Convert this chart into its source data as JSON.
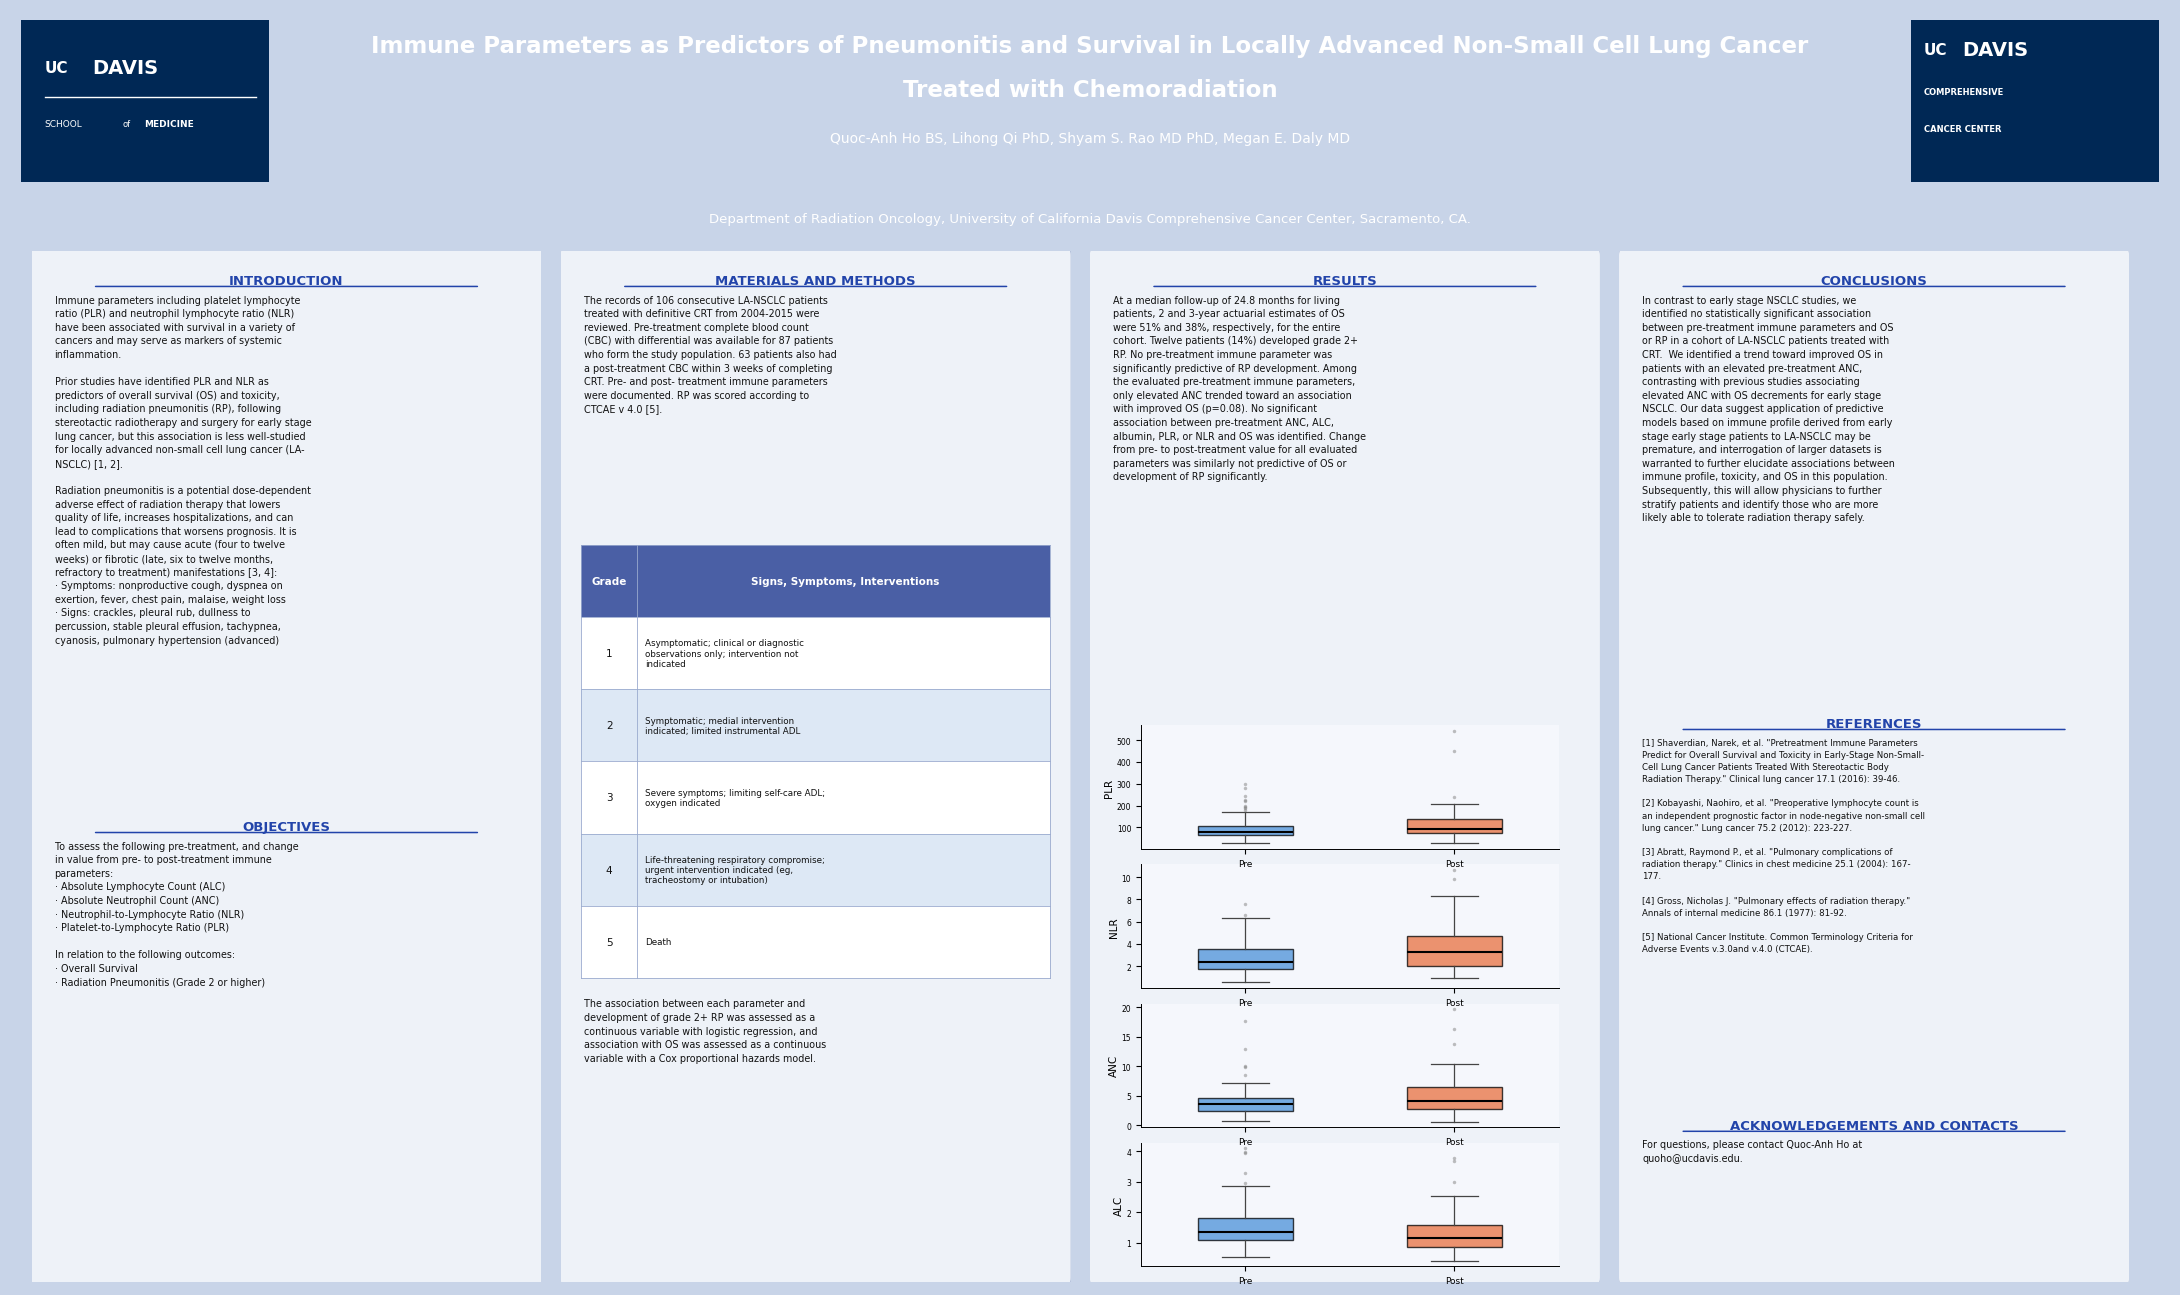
{
  "title_line1": "Immune Parameters as Predictors of Pneumonitis and Survival in Locally Advanced Non-Small Cell Lung Cancer",
  "title_line2": "Treated with Chemoradiation",
  "authors": "Quoc-Anh Ho BS, Lihong Qi PhD, Shyam S. Rao MD PhD, Megan E. Daly MD",
  "department": "Department of Radiation Oncology, University of California Davis Comprehensive Cancer Center, Sacramento, CA.",
  "header_bg": "#4a5fa5",
  "body_bg": "#c8d4e8",
  "panel_bg": "#eef2f8",
  "header_text_color": "#ffffff",
  "section_title_color": "#2244aa",
  "body_text_color": "#111111",
  "ucdavis_dark": "#002855",
  "table_header_bg": "#4a5fa5",
  "table_row1_bg": "#ffffff",
  "table_row2_bg": "#dde8f5",
  "intro_title": "INTRODUCTION",
  "intro_text": "Immune parameters including platelet lymphocyte\nratio (PLR) and neutrophil lymphocyte ratio (NLR)\nhave been associated with survival in a variety of\ncancers and may serve as markers of systemic\ninflammation.\n\nPrior studies have identified PLR and NLR as\npredictors of overall survival (OS) and toxicity,\nincluding radiation pneumonitis (RP), following\nstereotactic radiotherapy and surgery for early stage\nlung cancer, but this association is less well-studied\nfor locally advanced non-small cell lung cancer (LA-\nNSCLC) [1, 2].\n\nRadiation pneumonitis is a potential dose-dependent\nadverse effect of radiation therapy that lowers\nquality of life, increases hospitalizations, and can\nlead to complications that worsens prognosis. It is\noften mild, but may cause acute (four to twelve\nweeks) or fibrotic (late, six to twelve months,\nrefractory to treatment) manifestations [3, 4]:\n· Symptoms: nonproductive cough, dyspnea on\nexertion, fever, chest pain, malaise, weight loss\n· Signs: crackles, pleural rub, dullness to\npercussion, stable pleural effusion, tachypnea,\ncyanosis, pulmonary hypertension (advanced)",
  "objectives_title": "OBJECTIVES",
  "objectives_text": "To assess the following pre-treatment, and change\nin value from pre- to post-treatment immune\nparameters:\n· Absolute Lymphocyte Count (ALC)\n· Absolute Neutrophil Count (ANC)\n· Neutrophil-to-Lymphocyte Ratio (NLR)\n· Platelet-to-Lymphocyte Ratio (PLR)\n\nIn relation to the following outcomes:\n· Overall Survival\n· Radiation Pneumonitis (Grade 2 or higher)",
  "methods_title": "MATERIALS AND METHODS",
  "methods_text": "The records of 106 consecutive LA-NSCLC patients\ntreated with definitive CRT from 2004-2015 were\nreviewed. Pre-treatment complete blood count\n(CBC) with differential was available for 87 patients\nwho form the study population. 63 patients also had\na post-treatment CBC within 3 weeks of completing\nCRT. Pre- and post- treatment immune parameters\nwere documented. RP was scored according to\nCTCAE v 4.0 [5].",
  "methods_footer": "The association between each parameter and\ndevelopment of grade 2+ RP was assessed as a\ncontinuous variable with logistic regression, and\nassociation with OS was assessed as a continuous\nvariable with a Cox proportional hazards model.",
  "table_grades": [
    "1",
    "2",
    "3",
    "4",
    "5"
  ],
  "table_signs": [
    "Asymptomatic; clinical or diagnostic\nobservations only; intervention not\nindicated",
    "Symptomatic; medial intervention\nindicated; limited instrumental ADL",
    "Severe symptoms; limiting self-care ADL;\noxygen indicated",
    "Life-threatening respiratory compromise;\nurgent intervention indicated (eg,\ntracheostomy or intubation)",
    "Death"
  ],
  "results_title": "RESULTS",
  "results_text": "At a median follow-up of 24.8 months for living\npatients, 2 and 3-year actuarial estimates of OS\nwere 51% and 38%, respectively, for the entire\ncohort. Twelve patients (14%) developed grade 2+\nRP. No pre-treatment immune parameter was\nsignificantly predictive of RP development. Among\nthe evaluated pre-treatment immune parameters,\nonly elevated ANC trended toward an association\nwith improved OS (p=0.08). No significant\nassociation between pre-treatment ANC, ALC,\nalbumin, PLR, or NLR and OS was identified. Change\nfrom pre- to post-treatment value for all evaluated\nparameters was similarly not predictive of OS or\ndevelopment of RP significantly.",
  "conclusions_title": "CONCLUSIONS",
  "conclusions_text": "In contrast to early stage NSCLC studies, we\nidentified no statistically significant association\nbetween pre-treatment immune parameters and OS\nor RP in a cohort of LA-NSCLC patients treated with\nCRT.  We identified a trend toward improved OS in\npatients with an elevated pre-treatment ANC,\ncontrasting with previous studies associating\nelevated ANC with OS decrements for early stage\nNSCLC. Our data suggest application of predictive\nmodels based on immune profile derived from early\nstage early stage patients to LA-NSCLC may be\npremature, and interrogation of larger datasets is\nwarranted to further elucidate associations between\nimmune profile, toxicity, and OS in this population.\nSubsequently, this will allow physicians to further\nstratify patients and identify those who are more\nlikely able to tolerate radiation therapy safely.",
  "references_title": "REFERENCES",
  "ref1": "[1] Shaverdian, Narek, et al. \"Pretreatment Immune Parameters\nPredict for Overall Survival and Toxicity in Early-Stage Non-Small-\nCell Lung Cancer Patients Treated With Stereotactic Body\nRadiation Therapy.\" Clinical lung cancer 17.1 (2016): 39-46.",
  "ref2": "[2] Kobayashi, Naohiro, et al. \"Preoperative lymphocyte count is\nan independent prognostic factor in node-negative non-small cell\nlung cancer.\" Lung cancer 75.2 (2012): 223-227.",
  "ref3": "[3] Abratt, Raymond P., et al. \"Pulmonary complications of\nradiation therapy.\" Clinics in chest medicine 25.1 (2004): 167-\n177.",
  "ref4": "[4] Gross, Nicholas J. \"Pulmonary effects of radiation therapy.\"\nAnnals of internal medicine 86.1 (1977): 81-92.",
  "ref5": "[5] National Cancer Institute. Common Terminology Criteria for\nAdverse Events v.3.0and v.4.0 (CTCAE).",
  "acknowledgements_title": "ACKNOWLEDGEMENTS AND CONTACTS",
  "acknowledgements_text": "For questions, please contact Quoc-Anh Ho at\nquoho@ucdavis.edu.",
  "bp_colors": [
    "#4a90d9",
    "#e87040"
  ],
  "bp_labels": [
    "ALC",
    "ANC",
    "NLR",
    "PLR"
  ]
}
